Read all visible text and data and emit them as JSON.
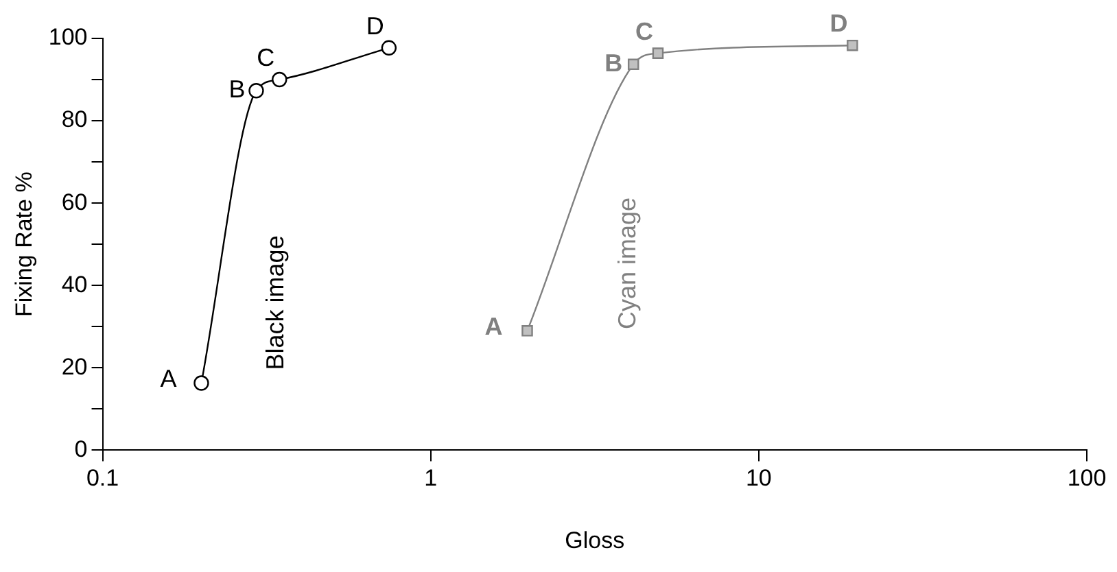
{
  "chart_data": {
    "type": "line",
    "xlabel": "Gloss",
    "ylabel": "Fixing Rate %",
    "log": "x",
    "grid": false,
    "legend": false,
    "xlim": [
      0.1,
      100
    ],
    "xticks": [
      0.1,
      1,
      10,
      100
    ],
    "ylim": [
      0,
      100
    ],
    "yticks": [
      0,
      {
        "value": 10,
        "label": null
      },
      20,
      {
        "value": 30,
        "label": null
      },
      40,
      {
        "value": 50,
        "label": null
      },
      60,
      {
        "value": 70,
        "label": null
      },
      80,
      {
        "value": 90,
        "label": null
      },
      100
    ],
    "series": [
      {
        "name": "Black image",
        "color": "#000000",
        "marker": "circle",
        "x": [
          0.2,
          0.294,
          0.346,
          0.746
        ],
        "values": [
          16.3,
          87.3,
          90,
          97.7
        ],
        "value_labels": [
          "A",
          "B",
          "C",
          "D"
        ]
      },
      {
        "name": "Cyan image",
        "color": "#808080",
        "marker": "square",
        "x": [
          1.97,
          4.15,
          4.93,
          19.3
        ],
        "values": [
          29,
          93.7,
          96.4,
          98.3
        ],
        "value_labels": [
          "A",
          "B",
          "C",
          "D"
        ]
      }
    ]
  }
}
